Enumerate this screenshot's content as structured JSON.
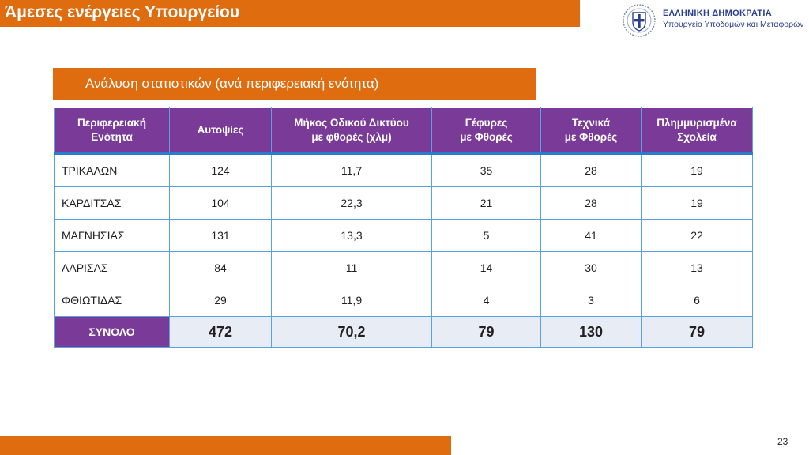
{
  "header": {
    "title": "Άμεσες ενέργειες Υπουργείου",
    "org_name": "ΕΛΛΗΝΙΚΗ ΔΗΜΟΚΡΑΤΙΑ",
    "ministry": "Υπουργείο Υποδομών και Μεταφορών",
    "emblem_icon": "greek-coat-of-arms-icon"
  },
  "subtitle": "Ανάλυση στατιστικών (ανά περιφερειακή ενότητα)",
  "table": {
    "columns": [
      "Περιφερειακή\nΕνότητα",
      "Αυτοψίες",
      "Μήκος Οδικού Δικτύου\nμε φθορές (χλμ)",
      "Γέφυρες\nμε Φθορές",
      "Τεχνικά\nμε Φθορές",
      "Πλημμυρισμένα\nΣχολεία"
    ],
    "rows": [
      [
        "ΤΡΙΚΑΛΩΝ",
        "124",
        "11,7",
        "35",
        "28",
        "19"
      ],
      [
        "ΚΑΡΔΙΤΣΑΣ",
        "104",
        "22,3",
        "21",
        "28",
        "19"
      ],
      [
        "ΜΑΓΝΗΣΙΑΣ",
        "131",
        "13,3",
        "5",
        "41",
        "22"
      ],
      [
        "ΛΑΡΙΣΑΣ",
        "84",
        "11",
        "14",
        "30",
        "13"
      ],
      [
        "ΦΘΙΩΤΙΔΑΣ",
        "29",
        "11,9",
        "4",
        "3",
        "6"
      ]
    ],
    "total": [
      "ΣΥΝΟΛΟ",
      "472",
      "70,2",
      "79",
      "130",
      "79"
    ]
  },
  "colors": {
    "accent_orange": "#e06c10",
    "header_purple": "#7a3b98",
    "grid_blue": "#56a3df",
    "total_row_bg": "#e8ecf5",
    "org_blue": "#2a3f8f"
  },
  "footer": {
    "page_number": "23"
  }
}
